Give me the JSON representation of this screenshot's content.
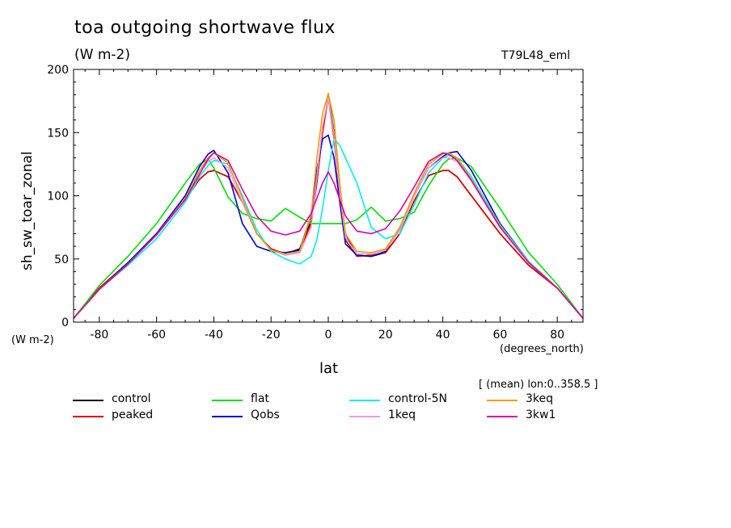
{
  "chart_data": {
    "type": "line",
    "title": "toa outgoing shortwave flux",
    "units_label": "(W m-2)",
    "run_label": "T79L48_eml",
    "xlabel": "lat",
    "xunits": "(degrees_north)",
    "ylabel": "sh_sw_toar_zonal",
    "yunits": "(W m-2)",
    "averaging_note": "[ (mean) lon:0..358.5 ]",
    "xlim": [
      -89,
      89
    ],
    "ylim": [
      0,
      200
    ],
    "xticks": [
      -80,
      -60,
      -40,
      -20,
      0,
      20,
      40,
      60,
      80
    ],
    "yticks": [
      0,
      50,
      100,
      150,
      200
    ],
    "legend_placement": "bottom",
    "x": [
      -89,
      -80,
      -70,
      -60,
      -50,
      -45,
      -42,
      -40,
      -35,
      -30,
      -25,
      -20,
      -15,
      -10,
      -6,
      -4,
      -2,
      0,
      2,
      4,
      6,
      10,
      15,
      20,
      25,
      30,
      35,
      40,
      42,
      45,
      50,
      60,
      70,
      80,
      89
    ],
    "series": [
      {
        "name": "control",
        "color": "#000000",
        "values": [
          3,
          27,
          47,
          70,
          97,
          113,
          119,
          120,
          115,
          95,
          70,
          58,
          54,
          58,
          80,
          110,
          150,
          180,
          150,
          105,
          70,
          53,
          52,
          55,
          70,
          96,
          116,
          120,
          120,
          115,
          100,
          70,
          45,
          27,
          3
        ]
      },
      {
        "name": "peaked",
        "color": "#e00000",
        "values": [
          3,
          27,
          47,
          70,
          97,
          113,
          119,
          120,
          115,
          95,
          70,
          58,
          54,
          57,
          78,
          110,
          150,
          178,
          145,
          100,
          65,
          52,
          53,
          55,
          70,
          96,
          116,
          120,
          120,
          115,
          100,
          70,
          45,
          27,
          3
        ]
      },
      {
        "name": "flat",
        "color": "#00dd00",
        "values": [
          3,
          29,
          52,
          78,
          110,
          125,
          129,
          122,
          99,
          86,
          82,
          80,
          90,
          83,
          78,
          78,
          78,
          78,
          78,
          78,
          78,
          81,
          91,
          80,
          82,
          87,
          108,
          125,
          129,
          130,
          123,
          90,
          55,
          30,
          3
        ]
      },
      {
        "name": "Qobs",
        "color": "#0000cc",
        "values": [
          3,
          26,
          47,
          70,
          100,
          123,
          133,
          136,
          118,
          78,
          60,
          56,
          55,
          57,
          85,
          120,
          145,
          148,
          130,
          95,
          62,
          53,
          52,
          56,
          75,
          100,
          122,
          131,
          134,
          135,
          120,
          78,
          48,
          27,
          3
        ]
      },
      {
        "name": "control-5N",
        "color": "#00eeee",
        "values": [
          3,
          26,
          45,
          66,
          95,
          115,
          124,
          128,
          125,
          100,
          73,
          56,
          50,
          46,
          52,
          65,
          90,
          120,
          145,
          140,
          130,
          110,
          75,
          66,
          70,
          93,
          118,
          130,
          132,
          130,
          115,
          77,
          48,
          27,
          3
        ]
      },
      {
        "name": "1keq",
        "color": "#ee99dd",
        "values": [
          3,
          26,
          46,
          69,
          97,
          118,
          127,
          130,
          122,
          95,
          70,
          57,
          53,
          55,
          75,
          115,
          155,
          178,
          148,
          102,
          67,
          54,
          54,
          57,
          73,
          100,
          122,
          130,
          130,
          127,
          112,
          75,
          47,
          27,
          3
        ]
      },
      {
        "name": "3keq",
        "color": "#eea000",
        "values": [
          3,
          26,
          46,
          69,
          98,
          120,
          130,
          134,
          126,
          98,
          70,
          57,
          54,
          56,
          85,
          130,
          165,
          181,
          160,
          110,
          70,
          56,
          55,
          58,
          75,
          102,
          125,
          133,
          134,
          130,
          113,
          76,
          47,
          27,
          3
        ]
      },
      {
        "name": "3kw1",
        "color": "#dd00aa",
        "values": [
          3,
          26,
          46,
          69,
          97,
          117,
          129,
          134,
          128,
          105,
          84,
          72,
          69,
          72,
          86,
          98,
          110,
          119,
          110,
          97,
          84,
          72,
          70,
          74,
          88,
          107,
          127,
          134,
          133,
          128,
          112,
          75,
          47,
          27,
          3
        ]
      }
    ]
  }
}
